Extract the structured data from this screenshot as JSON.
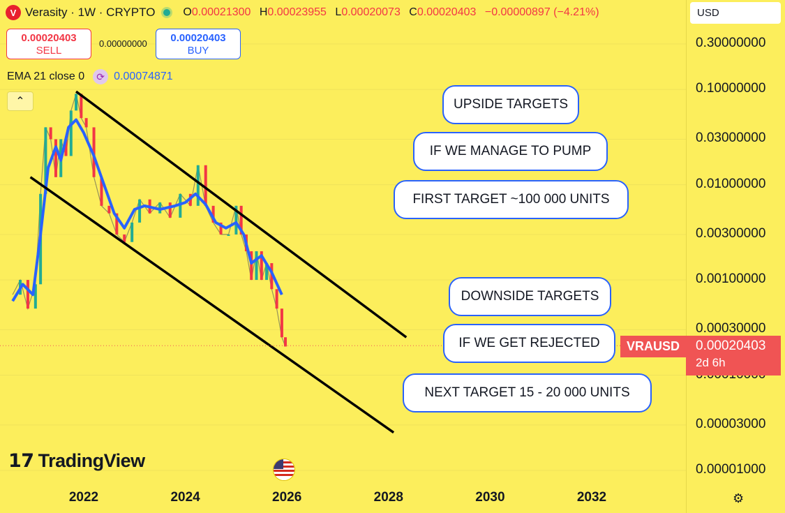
{
  "header": {
    "symbol_title": "Verasity · 1W · CRYPTO",
    "logo_letter": "V",
    "ohlc": {
      "o_label": "O",
      "o": "0.00021300",
      "h_label": "H",
      "h": "0.00023955",
      "l_label": "L",
      "l": "0.00020073",
      "c_label": "C",
      "c": "0.00020403",
      "change": "−0.00000897 (−4.21%)"
    }
  },
  "trade": {
    "sell_price": "0.00020403",
    "sell_label": "SELL",
    "spread": "0.00000000",
    "buy_price": "0.00020403",
    "buy_label": "BUY"
  },
  "indicator": {
    "label": "EMA 21 close 0",
    "value": "0.00074871"
  },
  "currency": "USD",
  "annotations": [
    "UPSIDE TARGETS",
    "IF WE MANAGE TO PUMP",
    "FIRST TARGET ~100 000 UNITS",
    "DOWNSIDE TARGETS",
    "IF WE GET REJECTED",
    "NEXT TARGET 15 - 20 000 UNITS"
  ],
  "price_label": {
    "symbol": "VRAUSD",
    "price": "0.00020403",
    "countdown": "2d 6h"
  },
  "brand": "TradingView",
  "colors": {
    "background": "#fcee5c",
    "ema": "#2962ff",
    "up": "#22ab94",
    "down": "#f23645",
    "channel": "#000000",
    "price_tag": "#f05454"
  },
  "chart_data": {
    "type": "line",
    "title": "Verasity · 1W · CRYPTO",
    "y_scale": "log",
    "ylim": [
      8e-06,
      0.4
    ],
    "y_ticks": [
      "0.30000000",
      "0.10000000",
      "0.03000000",
      "0.01000000",
      "0.00300000",
      "0.00100000",
      "0.00030000",
      "0.00010000",
      "0.00003000",
      "0.00001000"
    ],
    "x_ticks": [
      "2022",
      "2024",
      "2026",
      "2028",
      "2030",
      "2032"
    ],
    "xlim": [
      2020.6,
      2033.9
    ],
    "current_price": 0.00020403,
    "series": [
      {
        "name": "EMA 21 close 0",
        "x": [
          2020.6,
          2020.8,
          2021.0,
          2021.15,
          2021.3,
          2021.45,
          2021.55,
          2021.7,
          2021.85,
          2022.0,
          2022.2,
          2022.4,
          2022.6,
          2022.8,
          2023.0,
          2023.2,
          2023.5,
          2023.8,
          2024.0,
          2024.2,
          2024.4,
          2024.6,
          2024.8,
          2025.0,
          2025.15,
          2025.3,
          2025.5,
          2025.7,
          2025.9
        ],
        "y": [
          0.0006,
          0.0009,
          0.0007,
          0.003,
          0.015,
          0.025,
          0.018,
          0.04,
          0.048,
          0.035,
          0.02,
          0.01,
          0.005,
          0.0035,
          0.0055,
          0.006,
          0.0055,
          0.006,
          0.0065,
          0.008,
          0.0062,
          0.004,
          0.0035,
          0.004,
          0.003,
          0.0015,
          0.0018,
          0.0012,
          0.0007
        ]
      },
      {
        "name": "price",
        "x": [
          2020.6,
          2020.75,
          2020.9,
          2021.05,
          2021.15,
          2021.25,
          2021.35,
          2021.45,
          2021.55,
          2021.65,
          2021.75,
          2021.85,
          2021.95,
          2022.05,
          2022.2,
          2022.35,
          2022.5,
          2022.65,
          2022.8,
          2022.95,
          2023.1,
          2023.3,
          2023.5,
          2023.7,
          2023.9,
          2024.1,
          2024.25,
          2024.4,
          2024.55,
          2024.7,
          2024.85,
          2025.0,
          2025.1,
          2025.2,
          2025.3,
          2025.4,
          2025.5,
          2025.6,
          2025.7,
          2025.8,
          2025.9,
          2025.97
        ],
        "y": [
          0.0007,
          0.001,
          0.0005,
          0.0009,
          0.008,
          0.04,
          0.03,
          0.012,
          0.03,
          0.02,
          0.06,
          0.09,
          0.05,
          0.04,
          0.012,
          0.006,
          0.005,
          0.003,
          0.0025,
          0.004,
          0.007,
          0.005,
          0.0065,
          0.0045,
          0.008,
          0.006,
          0.016,
          0.006,
          0.004,
          0.003,
          0.003,
          0.006,
          0.003,
          0.002,
          0.001,
          0.002,
          0.001,
          0.0015,
          0.0008,
          0.0005,
          0.00025,
          0.0002
        ]
      }
    ],
    "channel_lines": [
      {
        "x": [
          2021.85,
          2028.35
        ],
        "y": [
          0.095,
          0.00025
        ]
      },
      {
        "x": [
          2020.95,
          2028.1
        ],
        "y": [
          0.012,
          2.5e-05
        ]
      }
    ]
  }
}
